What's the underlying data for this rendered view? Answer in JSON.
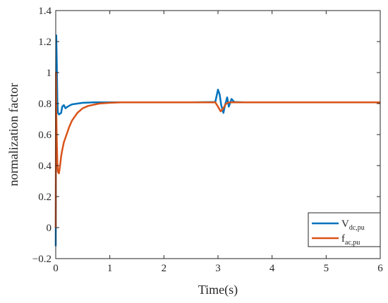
{
  "chart_data": {
    "type": "line",
    "xlabel": "Time(s)",
    "ylabel": "normalization factor",
    "xlim": [
      0,
      6
    ],
    "ylim": [
      -0.2,
      1.4
    ],
    "xticks": [
      0,
      1,
      2,
      3,
      4,
      5,
      6
    ],
    "xtick_labels": [
      "0",
      "1",
      "2",
      "3",
      "4",
      "5",
      "6"
    ],
    "yticks": [
      -0.2,
      0,
      0.2,
      0.4,
      0.6,
      0.8,
      1,
      1.2,
      1.4
    ],
    "ytick_labels": [
      "−0.2",
      "0",
      "0.2",
      "0.4",
      "0.6",
      "0.8",
      "1",
      "1.2",
      "1.4"
    ],
    "grid": false,
    "legend_position": "bottom-right",
    "series": [
      {
        "name_main": "V",
        "name_sub": "dc,pu",
        "color": "#0072BD",
        "x": [
          0,
          0.01,
          0.02,
          0.03,
          0.04,
          0.06,
          0.08,
          0.1,
          0.12,
          0.15,
          0.18,
          0.22,
          0.27,
          0.3,
          0.4,
          0.5,
          0.7,
          1.0,
          1.5,
          2.0,
          2.5,
          2.95,
          3.0,
          3.03,
          3.06,
          3.1,
          3.13,
          3.17,
          3.2,
          3.25,
          3.3,
          3.5,
          4.0,
          4.5,
          5.0,
          5.5,
          6.0
        ],
        "y": [
          -0.12,
          1.24,
          1.05,
          0.82,
          0.74,
          0.73,
          0.735,
          0.74,
          0.78,
          0.79,
          0.77,
          0.78,
          0.79,
          0.795,
          0.8,
          0.805,
          0.808,
          0.808,
          0.808,
          0.808,
          0.808,
          0.81,
          0.89,
          0.86,
          0.79,
          0.74,
          0.79,
          0.84,
          0.78,
          0.83,
          0.81,
          0.808,
          0.808,
          0.808,
          0.808,
          0.808,
          0.808
        ]
      },
      {
        "name_main": "f",
        "name_sub": "ac,pu",
        "color": "#D95319",
        "x": [
          0,
          0.005,
          0.01,
          0.02,
          0.03,
          0.04,
          0.06,
          0.08,
          0.1,
          0.12,
          0.15,
          0.2,
          0.25,
          0.3,
          0.4,
          0.5,
          0.6,
          0.8,
          1.0,
          1.2,
          1.5,
          2.0,
          2.5,
          2.95,
          3.0,
          3.05,
          3.1,
          3.15,
          3.2,
          3.3,
          4.0,
          5.0,
          6.0
        ],
        "y": [
          0.0,
          1.0,
          0.75,
          0.55,
          0.42,
          0.36,
          0.35,
          0.4,
          0.46,
          0.5,
          0.55,
          0.6,
          0.65,
          0.69,
          0.74,
          0.77,
          0.785,
          0.8,
          0.805,
          0.808,
          0.808,
          0.808,
          0.808,
          0.808,
          0.78,
          0.75,
          0.77,
          0.8,
          0.808,
          0.808,
          0.808,
          0.808,
          0.808
        ]
      }
    ]
  }
}
